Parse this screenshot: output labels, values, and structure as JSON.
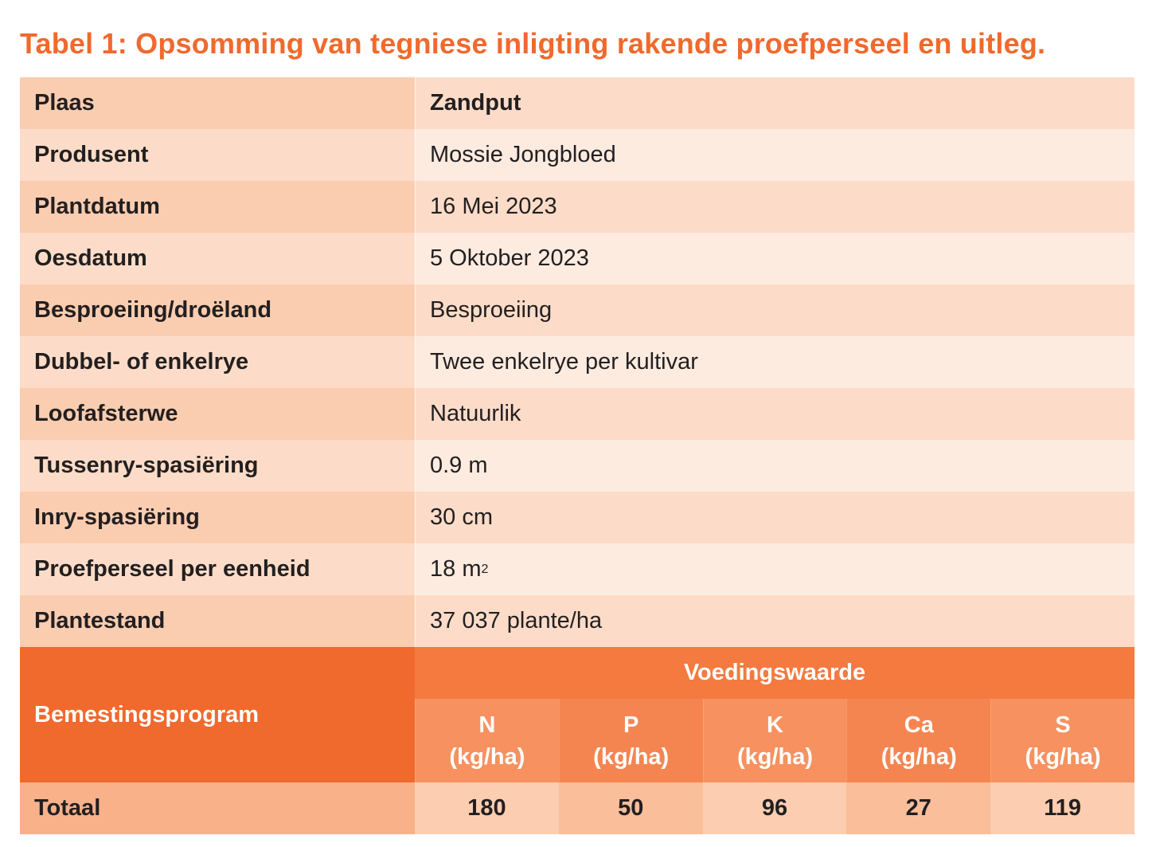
{
  "title": "Tabel 1: Opsomming van tegniese inligting rakende proefperseel en uitleg.",
  "rows": [
    {
      "label": "Plaas",
      "value": "Zandput"
    },
    {
      "label": "Produsent",
      "value": "Mossie Jongbloed"
    },
    {
      "label": "Plantdatum",
      "value": "16 Mei 2023"
    },
    {
      "label": "Oesdatum",
      "value": "5 Oktober 2023"
    },
    {
      "label": "Besproeiing/droëland",
      "value": "Besproeiing"
    },
    {
      "label": "Dubbel- of enkelrye",
      "value": "Twee enkelrye per kultivar"
    },
    {
      "label": "Loofafsterwe",
      "value": "Natuurlik"
    },
    {
      "label": "Tussenry-spasiëring",
      "value": "0.9 m"
    },
    {
      "label": "Inry-spasiëring",
      "value": "30 cm"
    },
    {
      "label": "Proefperseel per eenheid",
      "value": "18 m",
      "value_sup": "2"
    },
    {
      "label": "Plantestand",
      "value": "37 037 plante/ha"
    }
  ],
  "fertilisation": {
    "label": "Bemestingsprogram",
    "group_header": "Voedingswaarde",
    "nutrients": [
      {
        "name": "N",
        "unit": "(kg/ha)",
        "total": "180"
      },
      {
        "name": "P",
        "unit": "(kg/ha)",
        "total": "50"
      },
      {
        "name": "K",
        "unit": "(kg/ha)",
        "total": "96"
      },
      {
        "name": "Ca",
        "unit": "(kg/ha)",
        "total": "27"
      },
      {
        "name": "S",
        "unit": "(kg/ha)",
        "total": "119"
      }
    ],
    "total_label": "Totaal"
  }
}
